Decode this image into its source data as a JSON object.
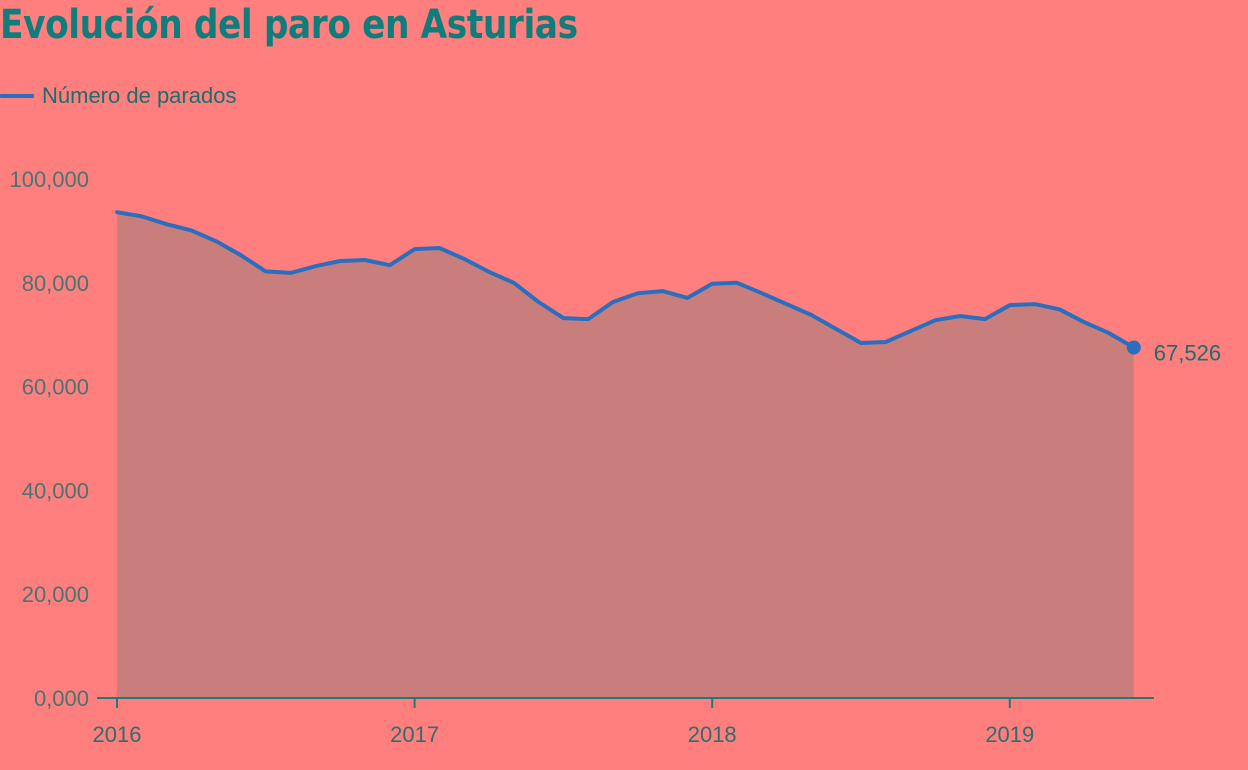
{
  "title": "Evolución del paro en Asturias",
  "legend": {
    "label": "Número de parados",
    "color": "#2a6fbf"
  },
  "colors": {
    "background": "#ff7f7f",
    "area_fill": "#c97e7c",
    "line": "#2a6fbf",
    "axis": "#1f7a78",
    "title": "#0f7d7b"
  },
  "end_label": "67,526",
  "chart_data": {
    "type": "area",
    "title": "Evolución del paro en Asturias",
    "xlabel": "",
    "ylabel": "",
    "ylim": [
      0,
      100000
    ],
    "yticks": [
      "0,000",
      "20,000",
      "40,000",
      "60,000",
      "80,000",
      "100,000"
    ],
    "ytick_values": [
      0,
      20000,
      40000,
      60000,
      80000,
      100000
    ],
    "xticks": [
      "2016",
      "2017",
      "2018",
      "2019"
    ],
    "grid": false,
    "legend_position": "top-left",
    "series": [
      {
        "name": "Número de parados",
        "x": [
          "2016-01",
          "2016-02",
          "2016-03",
          "2016-04",
          "2016-05",
          "2016-06",
          "2016-07",
          "2016-08",
          "2016-09",
          "2016-10",
          "2016-11",
          "2016-12",
          "2017-01",
          "2017-02",
          "2017-03",
          "2017-04",
          "2017-05",
          "2017-06",
          "2017-07",
          "2017-08",
          "2017-09",
          "2017-10",
          "2017-11",
          "2017-12",
          "2018-01",
          "2018-02",
          "2018-03",
          "2018-04",
          "2018-05",
          "2018-06",
          "2018-07",
          "2018-08",
          "2018-09",
          "2018-10",
          "2018-11",
          "2018-12",
          "2019-01",
          "2019-02",
          "2019-03",
          "2019-04",
          "2019-05",
          "2019-06"
        ],
        "values": [
          93600,
          92800,
          91300,
          90100,
          88000,
          85300,
          82200,
          81900,
          83200,
          84200,
          84400,
          83400,
          86500,
          86700,
          84600,
          82100,
          80000,
          76300,
          73200,
          73000,
          76300,
          78000,
          78400,
          77100,
          79800,
          80000,
          78000,
          75900,
          73800,
          71100,
          68400,
          68600,
          70700,
          72800,
          73600,
          73000,
          75700,
          75900,
          74900,
          72400,
          70300,
          67526
        ]
      }
    ],
    "annotations": [
      {
        "text": "67,526",
        "x": "2019-06",
        "y": 67526
      }
    ]
  }
}
